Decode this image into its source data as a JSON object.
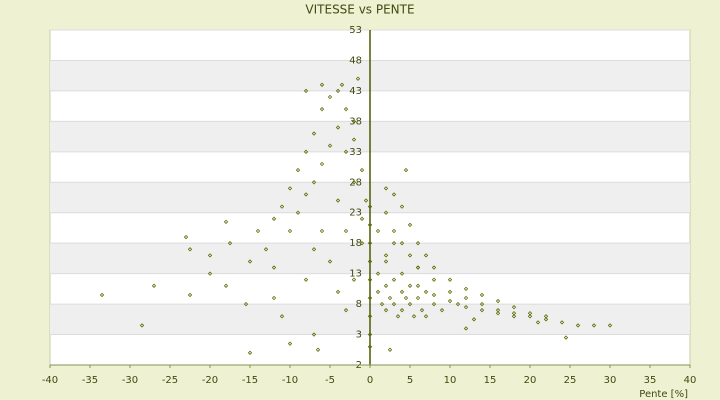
{
  "chart_data": {
    "type": "scatter",
    "title": "VITESSE vs PENTE",
    "x_label": "Pente [%]",
    "xlim": [
      -40,
      40
    ],
    "xticks": [
      -40,
      -35,
      -30,
      -25,
      -20,
      -15,
      -10,
      -5,
      0,
      5,
      10,
      15,
      20,
      25,
      30,
      35,
      40
    ],
    "ylim": [
      -2,
      53
    ],
    "yticks": [
      -2,
      3,
      8,
      13,
      18,
      23,
      28,
      33,
      38,
      43,
      48,
      53
    ],
    "grid": true,
    "bands": true,
    "series": [
      {
        "color": "#5b6b00",
        "x": [
          -33.5,
          -28.5,
          -27,
          -22.5,
          -22.5,
          -23,
          -20,
          -18,
          -18,
          -15.5,
          -15,
          -17.5,
          -15,
          -14,
          -13,
          -12,
          -12,
          -11,
          -10,
          -10,
          -9,
          -9,
          -8,
          -8,
          -7,
          -7,
          -6,
          -6,
          -5,
          -5,
          -4,
          -4,
          -3,
          -3,
          -2,
          -2,
          -1,
          -1,
          -6,
          -5,
          -4,
          -3,
          -8,
          -12,
          -11,
          -7,
          -6.5,
          -10,
          -20,
          -8,
          -6,
          -3.5,
          -2,
          -1.5,
          -0.5,
          -1,
          -2,
          -4,
          -3,
          -7,
          0,
          0,
          0,
          0,
          0,
          0,
          0,
          0,
          0,
          2,
          3,
          4,
          5,
          6,
          7,
          8,
          10,
          12,
          14,
          16,
          18,
          20,
          22,
          24,
          26,
          28,
          30,
          3,
          4,
          5,
          6,
          8,
          10,
          12,
          14,
          16,
          18,
          20,
          22,
          2,
          4,
          6,
          8,
          10,
          12,
          14,
          16,
          18,
          1,
          1.5,
          2,
          2,
          2.5,
          3,
          3,
          3.5,
          4,
          4,
          4.5,
          5,
          5,
          5.5,
          6,
          6.5,
          7,
          7,
          8,
          9,
          1,
          2,
          3,
          1,
          2,
          4.5,
          6,
          12,
          21,
          24.5,
          2.5,
          11,
          13
        ],
        "values": [
          9.5,
          4.5,
          11,
          9.5,
          17,
          19,
          16,
          21.5,
          11,
          8,
          0,
          18,
          15,
          20,
          17,
          22,
          14,
          24,
          20,
          27,
          23,
          30,
          26,
          33,
          36,
          28,
          40,
          31,
          42,
          34,
          43,
          37,
          40,
          33,
          35,
          28,
          30,
          22,
          20,
          15,
          10,
          7,
          12,
          9,
          6,
          3,
          0.5,
          1.5,
          13,
          43,
          44,
          44,
          38,
          45,
          25,
          18,
          12,
          25,
          20,
          17,
          1,
          3,
          6,
          9,
          12,
          15,
          18,
          21,
          24,
          27,
          26,
          24,
          21,
          18,
          16,
          14,
          12,
          10.5,
          9.5,
          8.5,
          7.5,
          6.5,
          6,
          5,
          4.5,
          4.5,
          4.5,
          20,
          18,
          16,
          14,
          12,
          10,
          9,
          8,
          7,
          6.5,
          6,
          5.5,
          15,
          13,
          11,
          9.5,
          8.5,
          7.5,
          7,
          6.5,
          6,
          10,
          8,
          11,
          7,
          9,
          12,
          8,
          6,
          10,
          7,
          9,
          11,
          8,
          6,
          9,
          7,
          10,
          6,
          8,
          7,
          13,
          16,
          18,
          20,
          23,
          30,
          14,
          4,
          5,
          2.5,
          0.5,
          8,
          5.5
        ]
      }
    ]
  }
}
